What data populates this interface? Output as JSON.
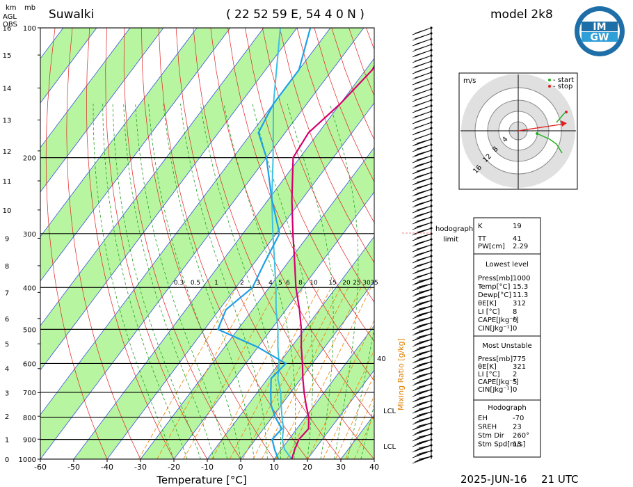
{
  "header": {
    "station": "Suwalki",
    "coords": "( 22 52 59 E, 54 4 0 N )",
    "model": "model 2k8",
    "logo_top": "IM",
    "logo_bottom": "GW",
    "left_label_km": "km",
    "left_label_mb": "mb",
    "left_label_agl": "AGL",
    "left_label_obs": "OBS",
    "footer_date": "2025-JUN-16",
    "footer_time": "21 UTC"
  },
  "chart_data": {
    "type": "skew-t",
    "xlabel": "Temperature [°C]",
    "x_ticks": [
      -60,
      -50,
      -40,
      -30,
      -20,
      -10,
      0,
      10,
      20,
      30,
      40
    ],
    "p_ticks": [
      100,
      200,
      300,
      400,
      500,
      600,
      700,
      800,
      900,
      1000
    ],
    "km_ticks": [
      0,
      1,
      2,
      3,
      4,
      5,
      6,
      7,
      8,
      9,
      10,
      11,
      12,
      13,
      14,
      15,
      16
    ],
    "mixing_ratio_label": "Mixing Ratio [g/kg]",
    "mixing_ratio_ticks": [
      "0.3",
      "0.5",
      "1",
      "2",
      "3",
      "4",
      "5",
      "6",
      "8",
      "10",
      "15",
      "20",
      "25",
      "30",
      "35"
    ],
    "right_marks": [
      "40",
      "LCL",
      "LCL"
    ],
    "temperature": [
      {
        "p": 1000,
        "t": 15.3
      },
      {
        "p": 950,
        "t": 14
      },
      {
        "p": 900,
        "t": 13
      },
      {
        "p": 850,
        "t": 13.5
      },
      {
        "p": 800,
        "t": 11
      },
      {
        "p": 750,
        "t": 7.5
      },
      {
        "p": 700,
        "t": 4
      },
      {
        "p": 650,
        "t": 0.5
      },
      {
        "p": 600,
        "t": -3
      },
      {
        "p": 550,
        "t": -7
      },
      {
        "p": 500,
        "t": -11
      },
      {
        "p": 450,
        "t": -16
      },
      {
        "p": 400,
        "t": -22
      },
      {
        "p": 350,
        "t": -28
      },
      {
        "p": 300,
        "t": -35
      },
      {
        "p": 250,
        "t": -43
      },
      {
        "p": 200,
        "t": -52
      },
      {
        "p": 175,
        "t": -53
      },
      {
        "p": 150,
        "t": -50
      },
      {
        "p": 125,
        "t": -48
      },
      {
        "p": 100,
        "t": -51
      }
    ],
    "dewpoint": [
      {
        "p": 1000,
        "t": 11.3
      },
      {
        "p": 950,
        "t": 8
      },
      {
        "p": 900,
        "t": 5
      },
      {
        "p": 850,
        "t": 5.5
      },
      {
        "p": 800,
        "t": 1
      },
      {
        "p": 750,
        "t": -3
      },
      {
        "p": 700,
        "t": -6
      },
      {
        "p": 650,
        "t": -9
      },
      {
        "p": 600,
        "t": -8
      },
      {
        "p": 550,
        "t": -20
      },
      {
        "p": 500,
        "t": -36
      },
      {
        "p": 450,
        "t": -38
      },
      {
        "p": 400,
        "t": -35
      },
      {
        "p": 350,
        "t": -37
      },
      {
        "p": 300,
        "t": -39
      },
      {
        "p": 250,
        "t": -49
      },
      {
        "p": 200,
        "t": -60
      },
      {
        "p": 175,
        "t": -68
      },
      {
        "p": 150,
        "t": -70
      },
      {
        "p": 125,
        "t": -70
      },
      {
        "p": 100,
        "t": -76
      }
    ],
    "parcel": [
      {
        "p": 1000,
        "t": 15.3
      },
      {
        "p": 950,
        "t": 11
      },
      {
        "p": 900,
        "t": 8
      },
      {
        "p": 850,
        "t": 6
      },
      {
        "p": 800,
        "t": 3
      },
      {
        "p": 750,
        "t": 0
      },
      {
        "p": 700,
        "t": -3
      },
      {
        "p": 650,
        "t": -7
      },
      {
        "p": 600,
        "t": -10
      },
      {
        "p": 550,
        "t": -14
      },
      {
        "p": 500,
        "t": -18
      },
      {
        "p": 450,
        "t": -23
      },
      {
        "p": 400,
        "t": -28
      },
      {
        "p": 350,
        "t": -34
      },
      {
        "p": 300,
        "t": -41
      },
      {
        "p": 250,
        "t": -49
      },
      {
        "p": 200,
        "t": -58
      },
      {
        "p": 150,
        "t": -70
      },
      {
        "p": 100,
        "t": -85
      }
    ]
  },
  "hodograph": {
    "unit": "m/s",
    "legend_start": "- start",
    "legend_stop": "- stop",
    "ring_labels": [
      "4",
      "8",
      "12",
      "16"
    ],
    "limit_label_1": "hodograph",
    "limit_label_2": "limit"
  },
  "indices": {
    "rows": [
      {
        "label": "K",
        "value": "19"
      },
      {
        "label": "TT",
        "value": "41"
      },
      {
        "label": "PW[cm]",
        "value": "2.29"
      }
    ]
  },
  "lowest_level": {
    "title": "Lowest level",
    "rows": [
      {
        "label": "Press[mb]",
        "value": "1000"
      },
      {
        "label": "Temp[°C]",
        "value": "15.3"
      },
      {
        "label": "Dewp[°C]",
        "value": "11.3"
      },
      {
        "label": "θE[K]",
        "value": "312"
      },
      {
        "label": "LI [°C]",
        "value": "8"
      },
      {
        "label": "CAPE[Jkg⁻¹]",
        "value": "0"
      },
      {
        "label": "CIN[Jkg⁻¹]",
        "value": "0"
      }
    ]
  },
  "most_unstable": {
    "title": "Most Unstable",
    "rows": [
      {
        "label": "Press[mb]",
        "value": "775"
      },
      {
        "label": "θE[K]",
        "value": "321"
      },
      {
        "label": "LI [°C]",
        "value": "2"
      },
      {
        "label": "CAPE[Jkg⁻¹]",
        "value": "5"
      },
      {
        "label": "CIN[Jkg⁻¹]",
        "value": "0"
      }
    ]
  },
  "hodograph_box": {
    "title": "Hodograph",
    "rows": [
      {
        "label": "EH",
        "value": "-70"
      },
      {
        "label": "SREH",
        "value": "23"
      },
      {
        "label": "Stm Dir",
        "value": "260°"
      },
      {
        "label": "Stm Spd[m/s]",
        "value": "13"
      }
    ]
  },
  "colors": {
    "temperature": "#d4006f",
    "dewpoint": "#1ea0e6",
    "parcel": "#3fc0e0",
    "band": "#b8f5a0",
    "isotherm": "#3050e0",
    "dry_adiabat": "#e02020",
    "moist_adiabat": "#20a020",
    "mixing": "#f08000"
  }
}
